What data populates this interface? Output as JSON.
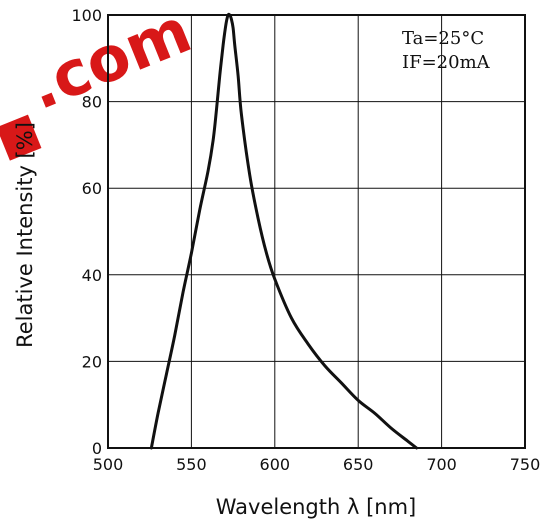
{
  "chart_data": {
    "type": "line",
    "title": "",
    "xlabel": "Wavelength λ [nm]",
    "ylabel": "Relative  Intensity [%]",
    "xlim": [
      500,
      750
    ],
    "ylim": [
      0,
      100
    ],
    "x_ticks": [
      500,
      550,
      600,
      650,
      700,
      750
    ],
    "y_ticks": [
      0,
      20,
      40,
      60,
      80,
      100
    ],
    "grid": true,
    "annotations": [
      "Ta=25°C",
      "IF=20mA"
    ],
    "series": [
      {
        "x": [
          526,
          530,
          535,
          540,
          545,
          550,
          555,
          560,
          563,
          565,
          567,
          569,
          570,
          571,
          572,
          573,
          574,
          575,
          576,
          578,
          580,
          585,
          590,
          595,
          600,
          610,
          620,
          630,
          640,
          650,
          660,
          670,
          680,
          685
        ],
        "y": [
          0,
          8,
          17,
          26,
          36,
          45,
          55,
          64,
          71,
          78,
          86,
          93,
          96,
          98.5,
          100,
          100,
          99,
          97,
          93,
          86,
          77,
          63,
          53,
          45,
          39,
          30,
          24,
          19,
          15,
          11,
          8,
          4.5,
          1.5,
          0
        ]
      }
    ],
    "line_color": "#111111"
  },
  "watermark": {
    "text": ".com",
    "color": "#d81818"
  }
}
